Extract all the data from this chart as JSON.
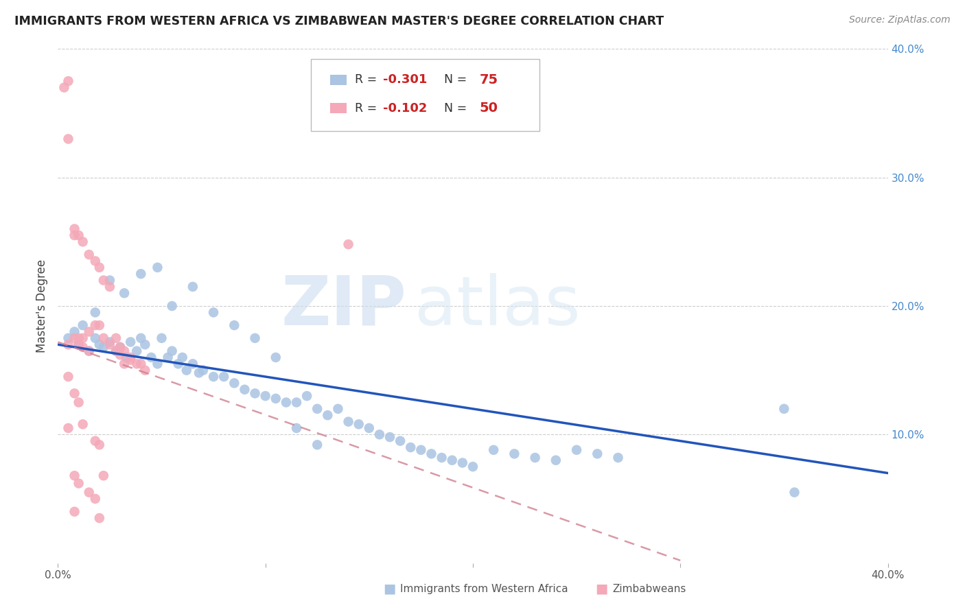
{
  "title": "IMMIGRANTS FROM WESTERN AFRICA VS ZIMBABWEAN MASTER'S DEGREE CORRELATION CHART",
  "source": "Source: ZipAtlas.com",
  "ylabel": "Master's Degree",
  "xlim": [
    0.0,
    0.4
  ],
  "ylim": [
    0.0,
    0.4
  ],
  "blue_R": -0.301,
  "blue_N": 75,
  "pink_R": -0.102,
  "pink_N": 50,
  "blue_color": "#aac4e2",
  "pink_color": "#f4a8b8",
  "blue_line_color": "#2255bb",
  "pink_line_color": "#d08090",
  "watermark_zip": "ZIP",
  "watermark_atlas": "atlas",
  "blue_scatter_x": [
    0.005,
    0.008,
    0.01,
    0.012,
    0.015,
    0.018,
    0.02,
    0.022,
    0.025,
    0.028,
    0.03,
    0.033,
    0.035,
    0.038,
    0.04,
    0.042,
    0.045,
    0.048,
    0.05,
    0.053,
    0.055,
    0.058,
    0.06,
    0.062,
    0.065,
    0.068,
    0.07,
    0.075,
    0.08,
    0.085,
    0.09,
    0.095,
    0.1,
    0.105,
    0.11,
    0.115,
    0.12,
    0.125,
    0.13,
    0.135,
    0.14,
    0.145,
    0.15,
    0.155,
    0.16,
    0.165,
    0.17,
    0.175,
    0.18,
    0.185,
    0.19,
    0.195,
    0.2,
    0.21,
    0.22,
    0.23,
    0.24,
    0.25,
    0.26,
    0.27,
    0.018,
    0.025,
    0.032,
    0.04,
    0.048,
    0.055,
    0.065,
    0.075,
    0.085,
    0.095,
    0.105,
    0.115,
    0.125,
    0.35,
    0.355
  ],
  "blue_scatter_y": [
    0.175,
    0.18,
    0.17,
    0.185,
    0.165,
    0.175,
    0.17,
    0.168,
    0.172,
    0.165,
    0.168,
    0.16,
    0.172,
    0.165,
    0.175,
    0.17,
    0.16,
    0.155,
    0.175,
    0.16,
    0.165,
    0.155,
    0.16,
    0.15,
    0.155,
    0.148,
    0.15,
    0.145,
    0.145,
    0.14,
    0.135,
    0.132,
    0.13,
    0.128,
    0.125,
    0.125,
    0.13,
    0.12,
    0.115,
    0.12,
    0.11,
    0.108,
    0.105,
    0.1,
    0.098,
    0.095,
    0.09,
    0.088,
    0.085,
    0.082,
    0.08,
    0.078,
    0.075,
    0.088,
    0.085,
    0.082,
    0.08,
    0.088,
    0.085,
    0.082,
    0.195,
    0.22,
    0.21,
    0.225,
    0.23,
    0.2,
    0.215,
    0.195,
    0.185,
    0.175,
    0.16,
    0.105,
    0.092,
    0.12,
    0.055
  ],
  "pink_scatter_x": [
    0.003,
    0.005,
    0.005,
    0.008,
    0.008,
    0.01,
    0.01,
    0.012,
    0.012,
    0.015,
    0.015,
    0.018,
    0.018,
    0.02,
    0.02,
    0.022,
    0.022,
    0.025,
    0.025,
    0.028,
    0.028,
    0.03,
    0.03,
    0.032,
    0.032,
    0.035,
    0.035,
    0.038,
    0.04,
    0.042,
    0.008,
    0.01,
    0.012,
    0.015,
    0.018,
    0.02,
    0.022,
    0.005,
    0.008,
    0.01,
    0.012,
    0.015,
    0.018,
    0.02,
    0.005,
    0.008,
    0.01,
    0.005,
    0.008,
    0.14
  ],
  "pink_scatter_y": [
    0.37,
    0.375,
    0.33,
    0.26,
    0.255,
    0.255,
    0.175,
    0.25,
    0.175,
    0.24,
    0.18,
    0.235,
    0.185,
    0.23,
    0.185,
    0.22,
    0.175,
    0.215,
    0.17,
    0.165,
    0.175,
    0.168,
    0.162,
    0.165,
    0.155,
    0.16,
    0.158,
    0.155,
    0.155,
    0.15,
    0.175,
    0.17,
    0.168,
    0.165,
    0.095,
    0.092,
    0.068,
    0.145,
    0.132,
    0.125,
    0.108,
    0.055,
    0.05,
    0.035,
    0.17,
    0.068,
    0.062,
    0.105,
    0.04,
    0.248
  ]
}
